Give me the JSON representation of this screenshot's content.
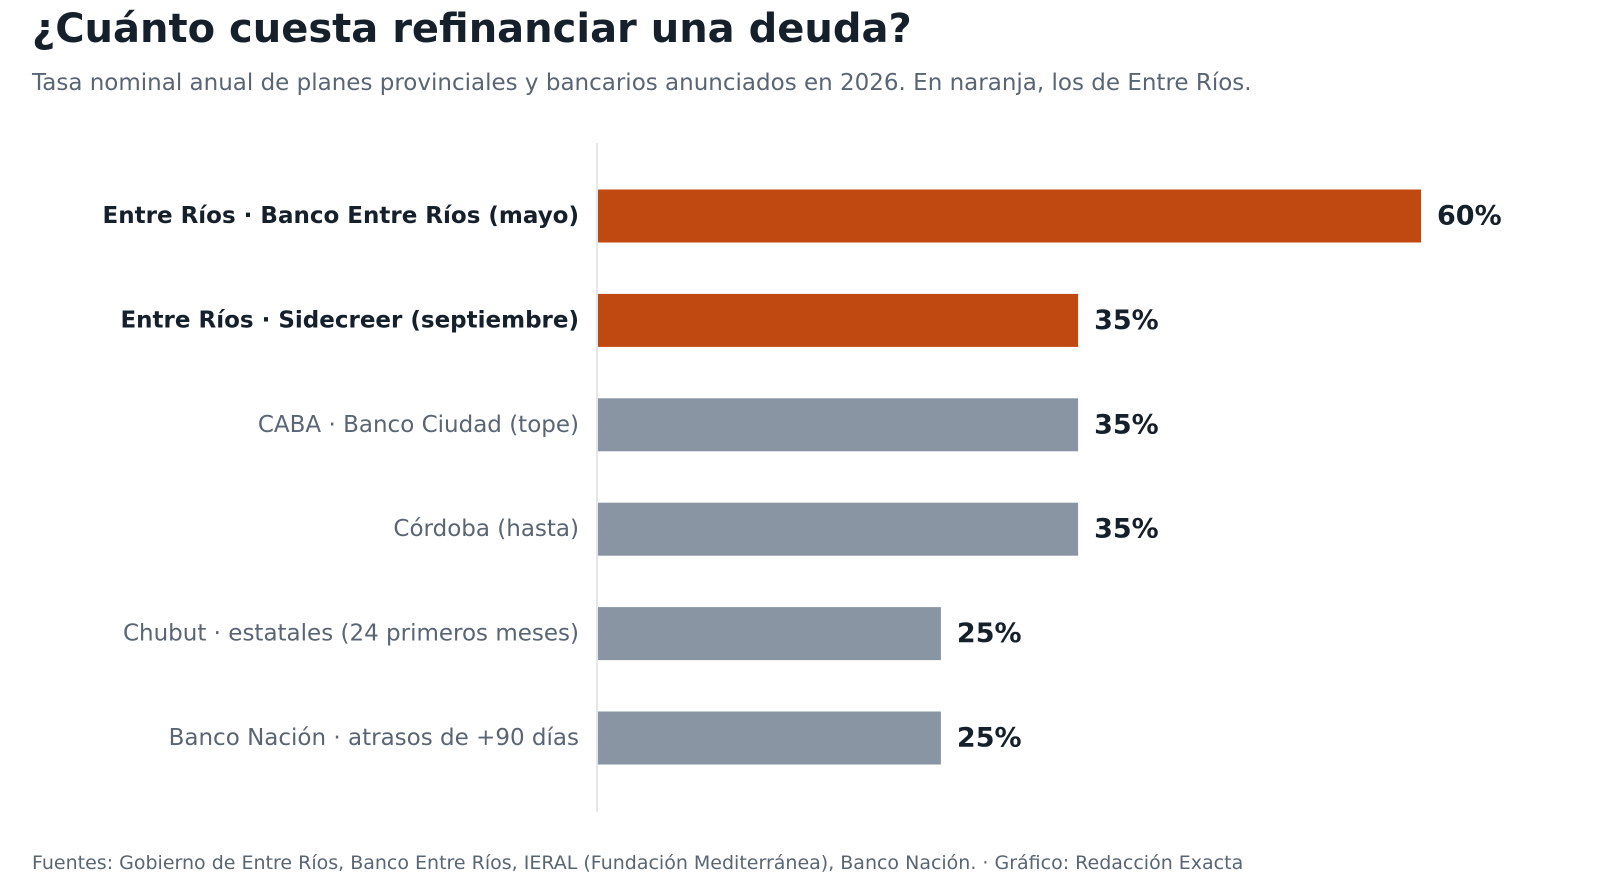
{
  "title": "¿Cuánto cuesta refinanciar una deuda?",
  "subtitle": "Tasa nominal anual de planes provinciales y bancarios anunciados en 2026. En naranja, los de Entre Ríos.",
  "footer": "Fuentes: Gobierno de Entre Ríos, Banco Entre Ríos, IERAL (Fundación Mediterránea), Banco Nación.  ·  Gráfico: Redacción Exacta",
  "colors": {
    "highlight": "#c04811",
    "other": "#8a95a3",
    "highlight_label": "#15202b",
    "other_label": "#5a6573",
    "value_label": "#15202b",
    "axis_line": "#dcdfe3"
  },
  "chart_data": {
    "type": "bar",
    "orientation": "horizontal",
    "categories": [
      "Entre Ríos · Banco Entre Ríos (mayo)",
      "Entre Ríos · Sidecreer (septiembre)",
      "CABA · Banco Ciudad (tope)",
      "Córdoba (hasta)",
      "Chubut · estatales (24 primeros meses)",
      "Banco Nación · atrasos de +90 días"
    ],
    "values": [
      60,
      35,
      35,
      35,
      25,
      25
    ],
    "value_labels": [
      "60%",
      "35%",
      "35%",
      "35%",
      "25%",
      "25%"
    ],
    "highlighted": [
      true,
      true,
      false,
      false,
      false,
      false
    ],
    "unit": "%",
    "xlim": [
      0,
      60
    ],
    "grid": false,
    "legend": "none"
  }
}
